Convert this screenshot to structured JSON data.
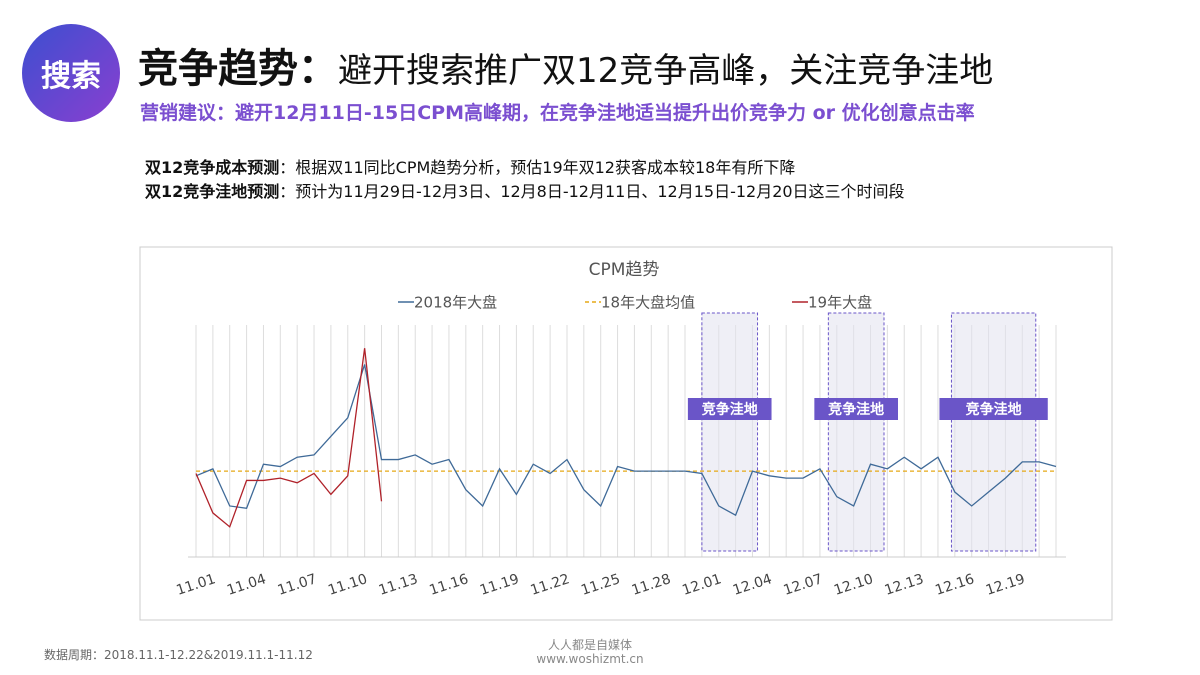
{
  "header": {
    "badge": "搜索",
    "title_lead": "竞争趋势：",
    "title_rest": "避开搜索推广双12竞争高峰，关注竞争洼地",
    "subtitle": "营销建议：避开12月11日-15日CPM高峰期，在竞争洼地适当提升出价竞争力 or 优化创意点击率"
  },
  "notes": [
    {
      "label": "双12竞争成本预测",
      "text": "：根据双11同比CPM趋势分析，预估19年双12获客成本较18年有所下降"
    },
    {
      "label": "双12竞争洼地预测",
      "text": "：预计为11月29日-12月3日、12月8日-12月11日、12月15日-12月20日这三个时间段"
    }
  ],
  "chart_data": {
    "type": "line",
    "title": "CPM趋势",
    "categories": [
      "11.01",
      null,
      null,
      "11.04",
      null,
      null,
      "11.07",
      null,
      null,
      "11.10",
      null,
      null,
      "11.13",
      null,
      null,
      "11.16",
      null,
      null,
      "11.19",
      null,
      null,
      "11.22",
      null,
      null,
      "11.25",
      null,
      null,
      "11.28",
      null,
      null,
      "12.01",
      null,
      null,
      "12.04",
      null,
      null,
      "12.07",
      null,
      null,
      "12.10",
      null,
      null,
      "12.13",
      null,
      null,
      "12.16",
      null,
      null,
      "12.19",
      null,
      null,
      null
    ],
    "series": [
      {
        "name": "2018年大盘",
        "color": "#3f6a98",
        "values": [
          35,
          38,
          22,
          21,
          40,
          39,
          43,
          44,
          52,
          60,
          83,
          42,
          42,
          44,
          40,
          42,
          29,
          22,
          38,
          27,
          40,
          36,
          42,
          29,
          22,
          39,
          37,
          37,
          37,
          37,
          36,
          22,
          18,
          37,
          35,
          34,
          34,
          38,
          26,
          22,
          40,
          38,
          43,
          38,
          43,
          28,
          22,
          28,
          34,
          41,
          41,
          39
        ]
      },
      {
        "name": "19年大盘",
        "color": "#b0222a",
        "values": [
          36,
          19,
          13,
          33,
          33,
          34,
          32,
          36,
          27,
          35,
          90,
          24,
          null,
          null,
          null,
          null,
          null,
          null,
          null,
          null,
          null,
          null,
          null,
          null,
          null,
          null,
          null,
          null,
          null,
          null,
          null,
          null,
          null,
          null,
          null,
          null,
          null,
          null,
          null,
          null,
          null,
          null,
          null,
          null,
          null,
          null,
          null,
          null,
          null,
          null,
          null,
          null
        ]
      }
    ],
    "reference_line": {
      "name": "18年大盘均值",
      "value": 37,
      "color": "#e6a817"
    },
    "regions": [
      {
        "label": "竞争洼地",
        "start": 30,
        "end": 33.3
      },
      {
        "label": "竞争洼地",
        "start": 37.5,
        "end": 40.8
      },
      {
        "label": "竞争洼地",
        "start": 44.8,
        "end": 49.8
      }
    ],
    "ylim": [
      0,
      100
    ]
  },
  "footer": {
    "source": "数据周期：2018.11.1-12.22&2019.11.1-11.12",
    "watermark": "人人都是自媒体",
    "watermark_url": "www.woshizmt.cn"
  }
}
